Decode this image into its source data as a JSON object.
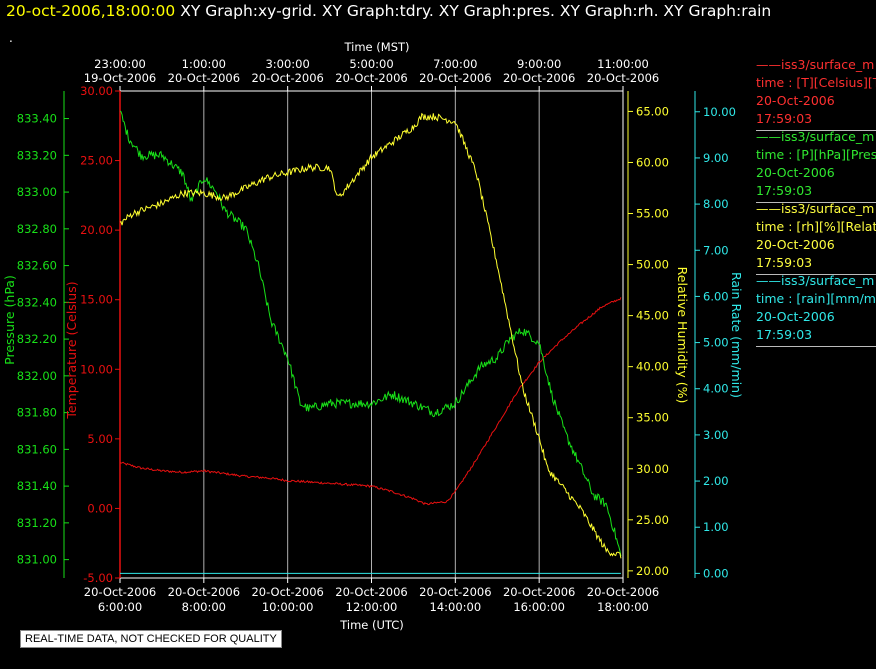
{
  "header": {
    "timestamp": "20-oct-2006,18:00:00",
    "titles": "XY Graph:xy-grid.  XY Graph:tdry.  XY Graph:pres.  XY Graph:rh.  XY Graph:rain"
  },
  "dot": ".",
  "footer": "REAL-TIME DATA, NOT CHECKED FOR QUALITY",
  "colors": {
    "temperature": "#e81010",
    "pressure": "#18e018",
    "humidity": "#ffff30",
    "rain": "#30e8e8",
    "grid": "#b0b0b0",
    "axis": "#ffffff"
  },
  "legend": [
    {
      "line": "——iss3/surface_m",
      "desc": "time : [T][Celsius][T",
      "date": "20-Oct-2006",
      "time": "17:59:03",
      "color": "#ff3030"
    },
    {
      "line": "——iss3/surface_m",
      "desc": "time : [P][hPa][Pres",
      "date": "20-Oct-2006",
      "time": "17:59:03",
      "color": "#30e830"
    },
    {
      "line": "——iss3/surface_m",
      "desc": "time : [rh][%][Relati",
      "date": "20-Oct-2006",
      "time": "17:59:03",
      "color": "#ffff40"
    },
    {
      "line": "——iss3/surface_m",
      "desc": "time : [rain][mm/min",
      "date": "20-Oct-2006",
      "time": "17:59:03",
      "color": "#30e8e8"
    }
  ],
  "chart_data": {
    "type": "line",
    "top_axis": {
      "label": "Time (MST)",
      "ticks": [
        {
          "time": "23:00:00",
          "date": "19-Oct-2006"
        },
        {
          "time": "1:00:00",
          "date": "20-Oct-2006"
        },
        {
          "time": "3:00:00",
          "date": "20-Oct-2006"
        },
        {
          "time": "5:00:00",
          "date": "20-Oct-2006"
        },
        {
          "time": "7:00:00",
          "date": "20-Oct-2006"
        },
        {
          "time": "9:00:00",
          "date": "20-Oct-2006"
        },
        {
          "time": "11:00:00",
          "date": "20-Oct-2006"
        }
      ]
    },
    "bottom_axis": {
      "label": "Time (UTC)",
      "range_hours_utc": [
        6,
        18
      ],
      "ticks": [
        {
          "date": "20-Oct-2006",
          "time": "6:00:00"
        },
        {
          "date": "20-Oct-2006",
          "time": "8:00:00"
        },
        {
          "date": "20-Oct-2006",
          "time": "10:00:00"
        },
        {
          "date": "20-Oct-2006",
          "time": "12:00:00"
        },
        {
          "date": "20-Oct-2006",
          "time": "14:00:00"
        },
        {
          "date": "20-Oct-2006",
          "time": "16:00:00"
        },
        {
          "date": "20-Oct-2006",
          "time": "18:00:00"
        }
      ]
    },
    "axes": {
      "pressure": {
        "label": "Pressure (hPa)",
        "min": 830.9,
        "max": 833.55,
        "ticks": [
          "831.00",
          "831.20",
          "831.40",
          "831.60",
          "831.80",
          "832.00",
          "832.20",
          "832.40",
          "832.60",
          "832.80",
          "833.00",
          "833.20",
          "833.40"
        ]
      },
      "temperature": {
        "label": "Temperature (Celsius)",
        "min": -5,
        "max": 30,
        "ticks": [
          "-5.00",
          "0.00",
          "5.00",
          "10.00",
          "15.00",
          "20.00",
          "25.00",
          "30.00"
        ]
      },
      "humidity": {
        "label": "Relative Humidity (%)",
        "min": 19.3,
        "max": 67,
        "ticks": [
          "20.00",
          "25.00",
          "30.00",
          "35.00",
          "40.00",
          "45.00",
          "50.00",
          "55.00",
          "60.00",
          "65.00"
        ]
      },
      "rain": {
        "label": "Rain Rate (mm/min)",
        "min": -0.1,
        "max": 10.45,
        "ticks": [
          "0.00",
          "1.00",
          "2.00",
          "3.00",
          "4.00",
          "5.00",
          "6.00",
          "7.00",
          "8.00",
          "9.00",
          "10.00"
        ]
      }
    },
    "series": [
      {
        "key": "temperature",
        "points": [
          [
            6.0,
            3.3
          ],
          [
            6.5,
            2.9
          ],
          [
            7.0,
            2.7
          ],
          [
            7.5,
            2.6
          ],
          [
            8.0,
            2.7
          ],
          [
            8.5,
            2.5
          ],
          [
            9.0,
            2.3
          ],
          [
            9.5,
            2.2
          ],
          [
            10.0,
            2.0
          ],
          [
            10.5,
            1.9
          ],
          [
            11.0,
            1.8
          ],
          [
            11.5,
            1.7
          ],
          [
            12.0,
            1.6
          ],
          [
            12.5,
            1.2
          ],
          [
            13.0,
            0.7
          ],
          [
            13.3,
            0.3
          ],
          [
            13.8,
            0.5
          ],
          [
            14.0,
            1.2
          ],
          [
            14.5,
            3.5
          ],
          [
            15.0,
            6.0
          ],
          [
            15.5,
            8.5
          ],
          [
            16.0,
            10.5
          ],
          [
            16.5,
            12.0
          ],
          [
            17.0,
            13.3
          ],
          [
            17.5,
            14.5
          ],
          [
            17.95,
            15.1
          ]
        ]
      },
      {
        "key": "pressure",
        "points": [
          [
            6.0,
            833.44
          ],
          [
            6.2,
            833.3
          ],
          [
            6.5,
            833.2
          ],
          [
            7.0,
            833.2
          ],
          [
            7.5,
            833.1
          ],
          [
            7.7,
            832.95
          ],
          [
            8.0,
            833.08
          ],
          [
            8.3,
            833.0
          ],
          [
            8.5,
            832.9
          ],
          [
            9.0,
            832.8
          ],
          [
            9.3,
            832.6
          ],
          [
            9.6,
            832.3
          ],
          [
            10.0,
            832.1
          ],
          [
            10.3,
            831.85
          ],
          [
            10.5,
            831.82
          ],
          [
            11.0,
            831.85
          ],
          [
            11.5,
            831.85
          ],
          [
            12.0,
            831.85
          ],
          [
            12.5,
            831.9
          ],
          [
            13.0,
            831.85
          ],
          [
            13.5,
            831.8
          ],
          [
            14.0,
            831.85
          ],
          [
            14.3,
            831.95
          ],
          [
            14.6,
            832.05
          ],
          [
            15.0,
            832.1
          ],
          [
            15.3,
            832.2
          ],
          [
            15.6,
            832.25
          ],
          [
            16.0,
            832.18
          ],
          [
            16.3,
            831.9
          ],
          [
            16.6,
            831.7
          ],
          [
            17.0,
            831.5
          ],
          [
            17.3,
            831.35
          ],
          [
            17.6,
            831.3
          ],
          [
            17.8,
            831.15
          ],
          [
            17.95,
            831.02
          ]
        ]
      },
      {
        "key": "humidity",
        "points": [
          [
            6.0,
            54
          ],
          [
            6.3,
            55
          ],
          [
            7.0,
            56
          ],
          [
            7.5,
            57
          ],
          [
            8.0,
            57
          ],
          [
            8.5,
            56.5
          ],
          [
            9.0,
            57.5
          ],
          [
            9.5,
            58.5
          ],
          [
            10.0,
            59
          ],
          [
            10.5,
            59.5
          ],
          [
            11.0,
            59.5
          ],
          [
            11.2,
            56.5
          ],
          [
            11.5,
            58
          ],
          [
            12.0,
            60.5
          ],
          [
            12.5,
            62
          ],
          [
            13.0,
            63.5
          ],
          [
            13.2,
            64.5
          ],
          [
            13.5,
            64.5
          ],
          [
            14.0,
            64
          ],
          [
            14.2,
            62
          ],
          [
            14.5,
            59
          ],
          [
            15.0,
            50
          ],
          [
            15.3,
            44
          ],
          [
            15.6,
            38
          ],
          [
            16.0,
            33
          ],
          [
            16.2,
            30
          ],
          [
            16.5,
            28.5
          ],
          [
            17.0,
            26
          ],
          [
            17.3,
            24
          ],
          [
            17.6,
            22
          ],
          [
            17.95,
            21.5
          ]
        ]
      },
      {
        "key": "rain",
        "points": [
          [
            6.0,
            0.0
          ],
          [
            17.95,
            0.0
          ]
        ]
      }
    ]
  }
}
